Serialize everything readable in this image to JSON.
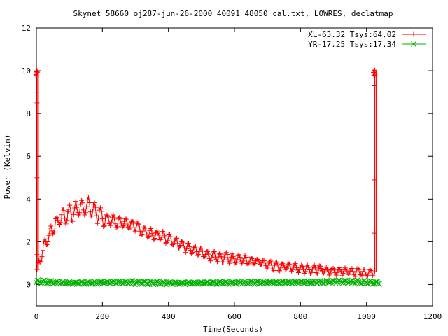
{
  "chart_data": {
    "type": "line",
    "title": "Skynet_58660_oj287-jun-26-2000_40091_48050_cal.txt, LOWRES, declatmap",
    "xlabel": "Time(Seconds)",
    "ylabel": "Power (Kelvin)",
    "xlim": [
      0,
      1200
    ],
    "ylim": [
      -1,
      12
    ],
    "xticks": [
      0,
      200,
      400,
      600,
      800,
      1000,
      1200
    ],
    "yticks": [
      0,
      2,
      4,
      6,
      8,
      10,
      12
    ],
    "legend": "top-right",
    "grid": false,
    "series": [
      {
        "name": "XL-63.32 Tsys:64.02",
        "color": "#ff0000",
        "marker": "plus",
        "envelope": {
          "x": [
            5,
            20,
            40,
            60,
            80,
            100,
            120,
            140,
            160,
            180,
            200,
            220,
            250,
            280,
            300,
            320,
            350,
            380,
            400,
            420,
            450,
            480,
            500,
            520,
            550,
            580,
            600,
            620,
            650,
            680,
            700,
            720,
            750,
            780,
            800,
            820,
            850,
            880,
            900,
            920,
            950,
            980,
            1000,
            1020
          ],
          "low": [
            0.7,
            1.2,
            2.0,
            2.4,
            2.7,
            2.8,
            3.0,
            3.0,
            3.1,
            2.9,
            2.7,
            2.6,
            2.6,
            2.5,
            2.4,
            2.2,
            2.0,
            1.9,
            1.8,
            1.7,
            1.5,
            1.3,
            1.2,
            1.1,
            1.0,
            0.95,
            0.9,
            0.9,
            0.85,
            0.8,
            0.7,
            0.6,
            0.6,
            0.55,
            0.5,
            0.5,
            0.45,
            0.45,
            0.4,
            0.4,
            0.4,
            0.35,
            0.35,
            0.4
          ],
          "high": [
            1.0,
            1.9,
            2.7,
            3.2,
            3.6,
            3.7,
            3.9,
            4.0,
            4.1,
            3.8,
            3.5,
            3.3,
            3.2,
            3.1,
            3.0,
            2.8,
            2.6,
            2.5,
            2.4,
            2.2,
            2.0,
            1.8,
            1.7,
            1.6,
            1.5,
            1.5,
            1.4,
            1.4,
            1.3,
            1.2,
            1.1,
            1.1,
            1.0,
            1.0,
            0.9,
            0.9,
            0.9,
            0.8,
            0.8,
            0.8,
            0.75,
            0.75,
            0.7,
            0.7
          ]
        },
        "spikes": [
          {
            "x": 2,
            "values": [
              0.7,
              1.4,
              5.0,
              8.5,
              9.0,
              9.9,
              10.0
            ]
          },
          {
            "x": 1025,
            "values": [
              0.6,
              2.4,
              4.9,
              9.3,
              9.8,
              10.0
            ]
          }
        ]
      },
      {
        "name": "YR-17.25 Tsys:17.34",
        "color": "#00b000",
        "marker": "cross",
        "envelope": {
          "x": [
            0,
            100,
            200,
            300,
            400,
            500,
            600,
            700,
            800,
            900,
            1000,
            1040
          ],
          "low": [
            0.0,
            0.0,
            0.02,
            0.0,
            -0.02,
            0.0,
            0.0,
            0.02,
            0.02,
            0.05,
            0.0,
            -0.02
          ],
          "high": [
            0.22,
            0.12,
            0.15,
            0.18,
            0.12,
            0.12,
            0.15,
            0.15,
            0.15,
            0.2,
            0.2,
            0.1
          ]
        }
      }
    ]
  }
}
